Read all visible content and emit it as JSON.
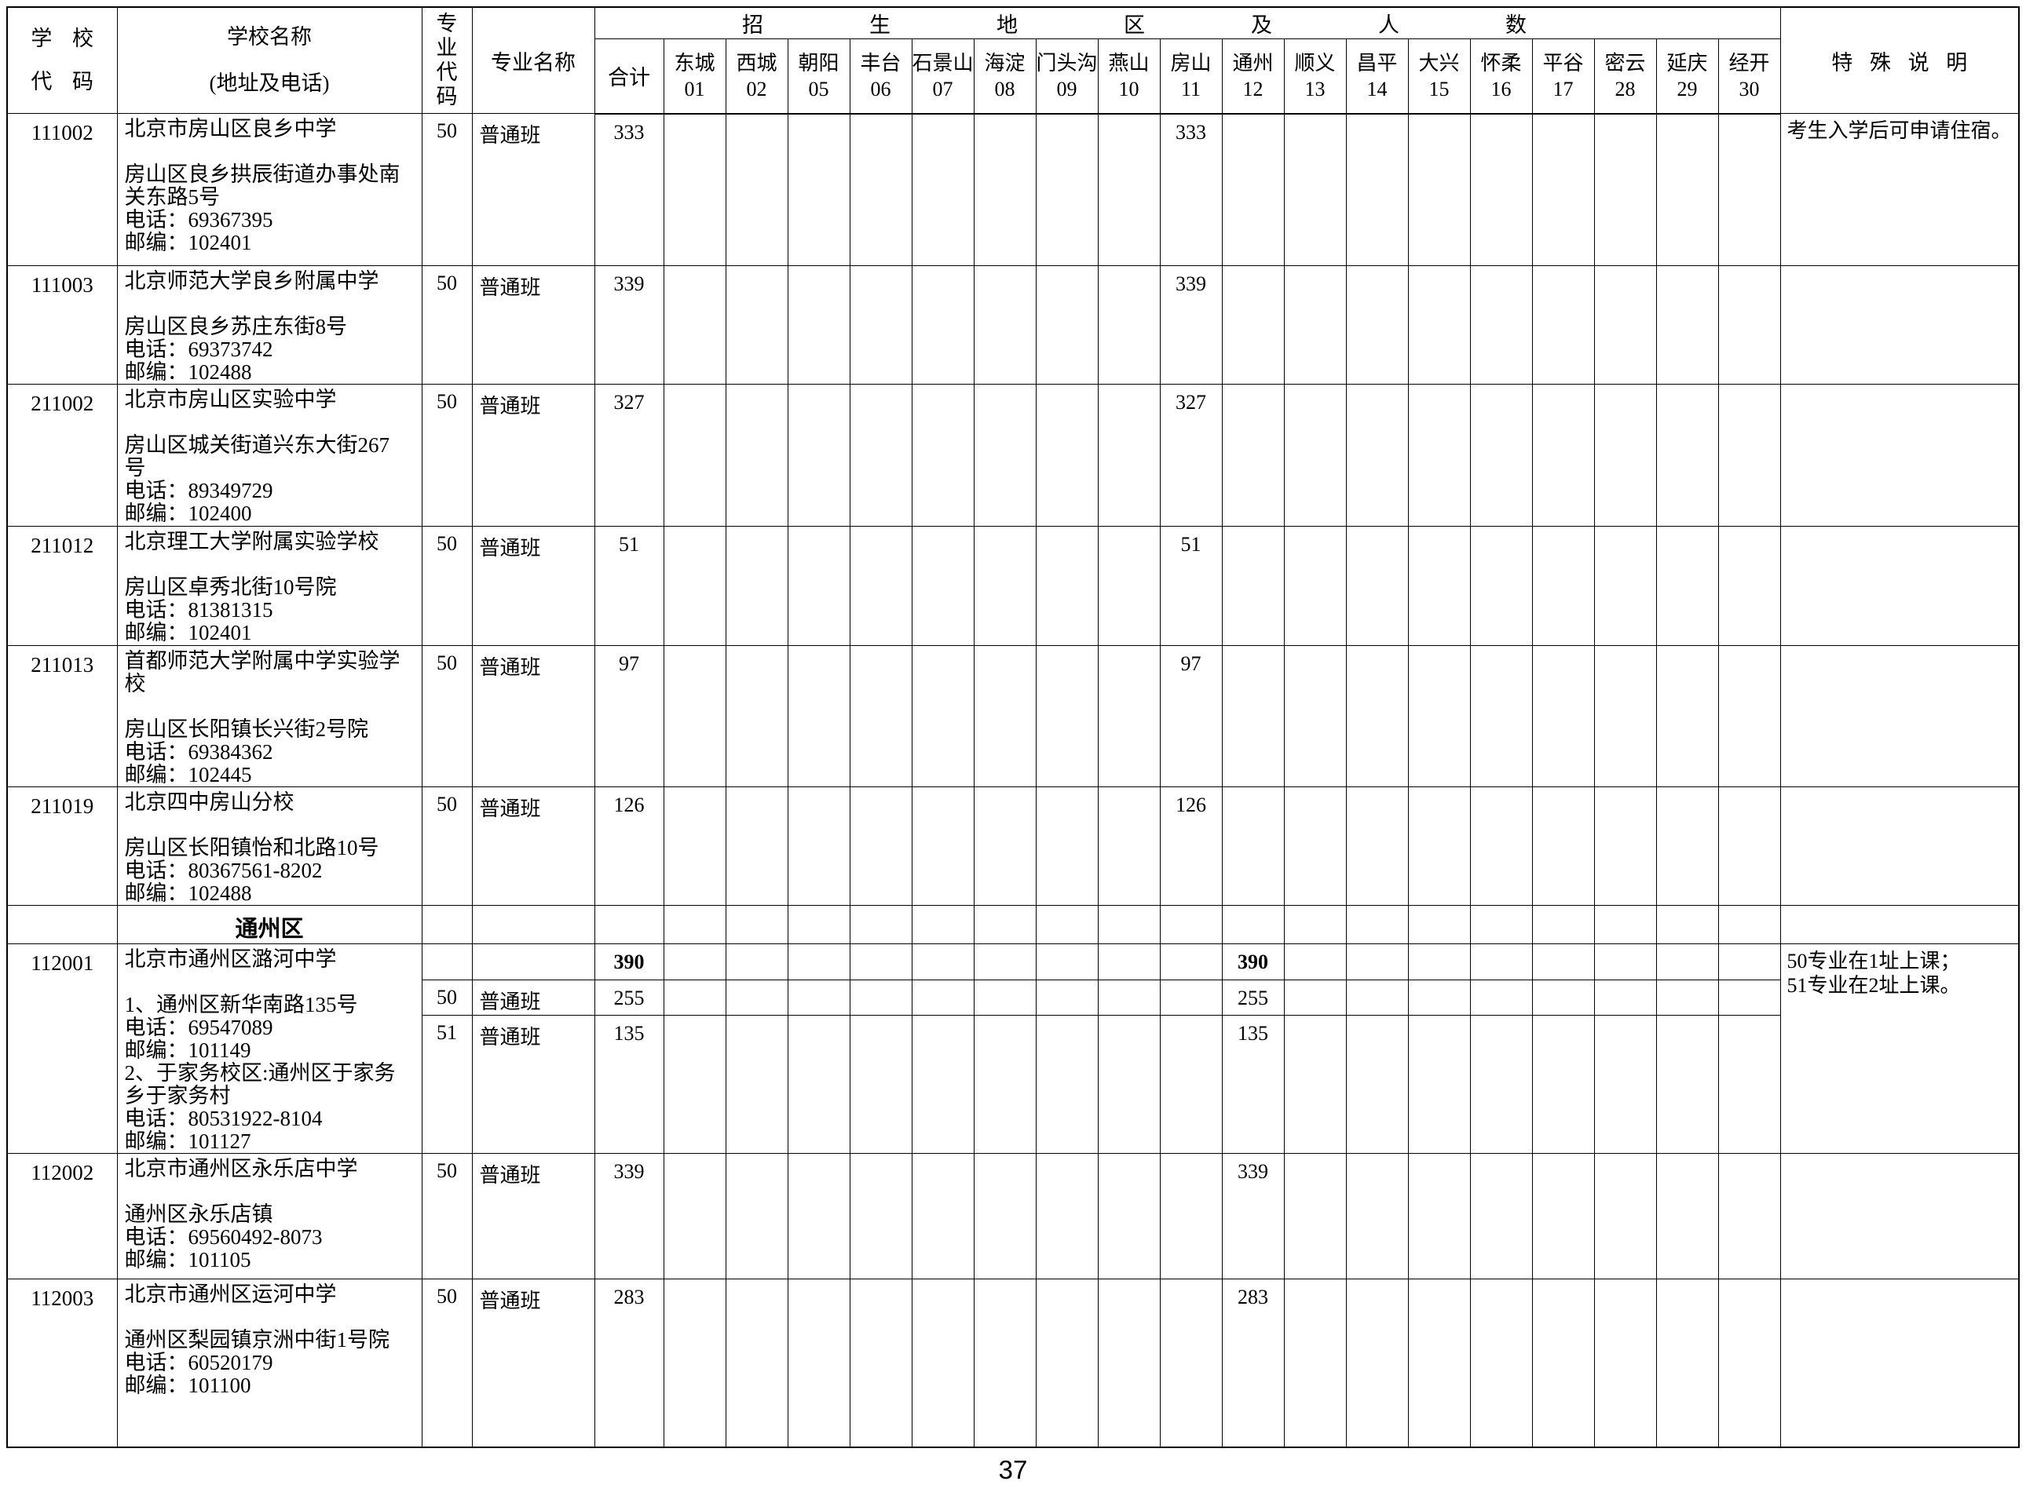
{
  "page_number": "37",
  "colors": {
    "background": "#ffffff",
    "border": "#000000",
    "text": "#000000"
  },
  "table": {
    "header": {
      "school_code_lines": [
        "学 校",
        "代 码"
      ],
      "school_name_label": "学校名称",
      "school_name_sublabel": "(地址及电话)",
      "major_code_label": "专业代码",
      "major_name_label": "专业名称",
      "region_group_label": "招生地区及人数",
      "total_label": "合计",
      "special_label": "特殊说明",
      "districts": [
        {
          "name": "东城",
          "code": "01"
        },
        {
          "name": "西城",
          "code": "02"
        },
        {
          "name": "朝阳",
          "code": "05"
        },
        {
          "name": "丰台",
          "code": "06"
        },
        {
          "name": "石景山",
          "code": "07"
        },
        {
          "name": "海淀",
          "code": "08"
        },
        {
          "name": "门头沟",
          "code": "09"
        },
        {
          "name": "燕山",
          "code": "10"
        },
        {
          "name": "房山",
          "code": "11"
        },
        {
          "name": "通州",
          "code": "12"
        },
        {
          "name": "顺义",
          "code": "13"
        },
        {
          "name": "昌平",
          "code": "14"
        },
        {
          "name": "大兴",
          "code": "15"
        },
        {
          "name": "怀柔",
          "code": "16"
        },
        {
          "name": "平谷",
          "code": "17"
        },
        {
          "name": "密云",
          "code": "28"
        },
        {
          "name": "延庆",
          "code": "29"
        },
        {
          "name": "经开",
          "code": "30"
        }
      ]
    },
    "rows": [
      {
        "kind": "school",
        "school_code": "111002",
        "school_name": "北京市房山区良乡中学",
        "address_lines": [
          "房山区良乡拱辰街道办事处南关东路5号",
          "电话：69367395",
          "邮编：102401"
        ],
        "majors": [
          {
            "major_code": "50",
            "major_name": "普通班",
            "total": "333",
            "bold": false,
            "allocations": {
              "11": "333"
            }
          }
        ],
        "special_note_lines": [
          "考生入学后可申请住宿。"
        ]
      },
      {
        "kind": "school",
        "school_code": "111003",
        "school_name": "北京师范大学良乡附属中学",
        "address_lines": [
          "房山区良乡苏庄东街8号",
          "电话：69373742",
          "邮编：102488"
        ],
        "majors": [
          {
            "major_code": "50",
            "major_name": "普通班",
            "total": "339",
            "bold": false,
            "allocations": {
              "11": "339"
            }
          }
        ],
        "special_note_lines": []
      },
      {
        "kind": "school",
        "school_code": "211002",
        "school_name": "北京市房山区实验中学",
        "address_lines": [
          "房山区城关街道兴东大街267号",
          "电话：89349729",
          "邮编：102400"
        ],
        "majors": [
          {
            "major_code": "50",
            "major_name": "普通班",
            "total": "327",
            "bold": false,
            "allocations": {
              "11": "327"
            }
          }
        ],
        "special_note_lines": []
      },
      {
        "kind": "school",
        "school_code": "211012",
        "school_name": "北京理工大学附属实验学校",
        "address_lines": [
          "房山区卓秀北街10号院",
          "电话：81381315",
          "邮编：102401"
        ],
        "majors": [
          {
            "major_code": "50",
            "major_name": "普通班",
            "total": "51",
            "bold": false,
            "allocations": {
              "11": "51"
            }
          }
        ],
        "special_note_lines": []
      },
      {
        "kind": "school",
        "school_code": "211013",
        "school_name": "首都师范大学附属中学实验学校",
        "address_lines": [
          "房山区长阳镇长兴街2号院",
          "电话：69384362",
          "邮编：102445"
        ],
        "majors": [
          {
            "major_code": "50",
            "major_name": "普通班",
            "total": "97",
            "bold": false,
            "allocations": {
              "11": "97"
            }
          }
        ],
        "special_note_lines": []
      },
      {
        "kind": "school",
        "school_code": "211019",
        "school_name": "北京四中房山分校",
        "address_lines": [
          "房山区长阳镇怡和北路10号",
          "电话：80367561-8202",
          "邮编：102488"
        ],
        "majors": [
          {
            "major_code": "50",
            "major_name": "普通班",
            "total": "126",
            "bold": false,
            "allocations": {
              "11": "126"
            }
          }
        ],
        "special_note_lines": []
      },
      {
        "kind": "section",
        "title": "通州区"
      },
      {
        "kind": "school",
        "school_code": "112001",
        "school_name": "北京市通州区潞河中学",
        "address_lines": [
          "1、通州区新华南路135号",
          "电话：69547089",
          "邮编：101149",
          "2、于家务校区:通州区于家务乡于家务村",
          "电话：80531922-8104",
          "邮编：101127"
        ],
        "majors": [
          {
            "major_code": "",
            "major_name": "",
            "total": "390",
            "bold": true,
            "allocations": {
              "12": "390"
            }
          },
          {
            "major_code": "50",
            "major_name": "普通班",
            "total": "255",
            "bold": false,
            "allocations": {
              "12": "255"
            }
          },
          {
            "major_code": "51",
            "major_name": "普通班",
            "total": "135",
            "bold": false,
            "allocations": {
              "12": "135"
            }
          }
        ],
        "special_note_lines": [
          "50专业在1址上课；",
          "51专业在2址上课。"
        ]
      },
      {
        "kind": "school",
        "school_code": "112002",
        "school_name": "北京市通州区永乐店中学",
        "address_lines": [
          "通州区永乐店镇",
          "电话：69560492-8073",
          "邮编：101105"
        ],
        "majors": [
          {
            "major_code": "50",
            "major_name": "普通班",
            "total": "339",
            "bold": false,
            "allocations": {
              "12": "339"
            }
          }
        ],
        "special_note_lines": []
      },
      {
        "kind": "school",
        "school_code": "112003",
        "school_name": "北京市通州区运河中学",
        "address_lines": [
          "通州区梨园镇京洲中街1号院",
          "电话：60520179",
          "邮编：101100"
        ],
        "majors": [
          {
            "major_code": "50",
            "major_name": "普通班",
            "total": "283",
            "bold": false,
            "allocations": {
              "12": "283"
            }
          }
        ],
        "special_note_lines": []
      }
    ]
  }
}
